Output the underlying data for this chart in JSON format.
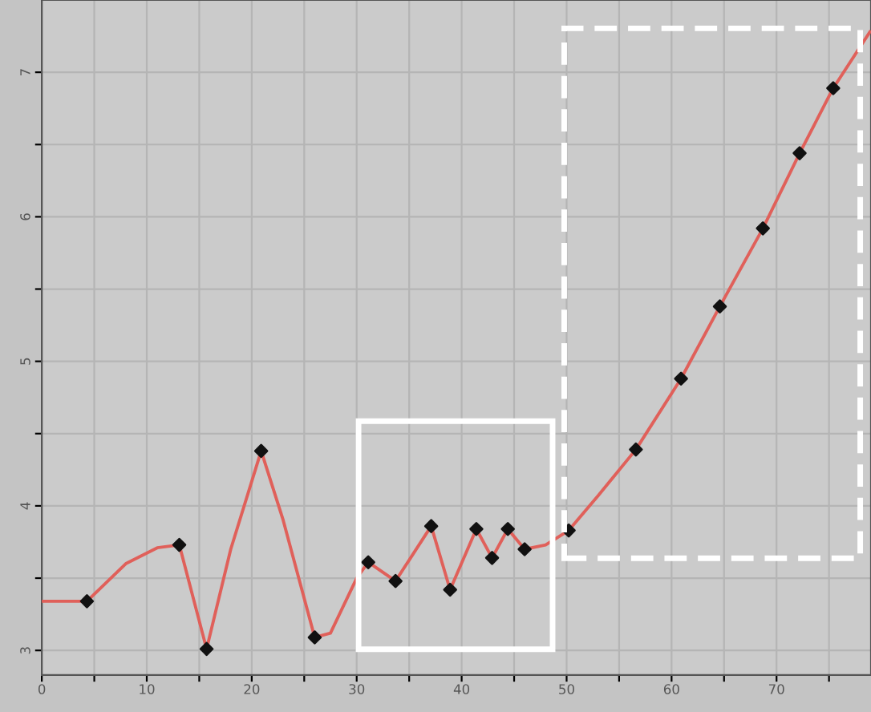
{
  "chart_data": {
    "type": "line",
    "series": [
      {
        "color": "#e0605a",
        "marker": "none",
        "x": [
          0,
          4.3,
          8,
          11,
          13.1,
          15.7,
          18,
          20.9,
          23,
          26,
          27.5,
          30,
          31.1,
          33.7,
          37.1,
          38.9,
          41.4,
          42.9,
          44.4,
          46,
          48,
          50.2,
          53,
          56.6,
          60.9,
          64.6,
          68.7,
          72.2,
          75.4,
          78.9
        ],
        "values": [
          3.34,
          3.34,
          3.6,
          3.71,
          3.73,
          3.01,
          3.7,
          4.38,
          3.9,
          3.09,
          3.12,
          3.5,
          3.61,
          3.48,
          3.86,
          3.42,
          3.84,
          3.64,
          3.84,
          3.7,
          3.73,
          3.83,
          4.07,
          4.39,
          4.88,
          5.38,
          5.92,
          6.44,
          6.89,
          7.28
        ]
      },
      {
        "type": "scatter",
        "color": "#111111",
        "marker": "diamond",
        "x": [
          4.3,
          13.1,
          15.7,
          20.9,
          26,
          31.1,
          33.7,
          37.1,
          38.9,
          41.4,
          42.9,
          44.4,
          46,
          50.2,
          56.6,
          60.9,
          64.6,
          68.7,
          72.2,
          75.4
        ],
        "values": [
          3.34,
          3.73,
          3.01,
          4.38,
          3.09,
          3.61,
          3.48,
          3.86,
          3.42,
          3.84,
          3.64,
          3.84,
          3.7,
          3.83,
          4.39,
          4.88,
          5.38,
          5.92,
          6.44,
          6.89
        ]
      }
    ],
    "xlim": [
      0,
      79
    ],
    "ylim": [
      2.83,
      7.5
    ],
    "xticks": [
      0,
      {
        "value": 5,
        "label": null
      },
      10,
      {
        "value": 15,
        "label": null
      },
      20,
      {
        "value": 25,
        "label": null
      },
      30,
      {
        "value": 35,
        "label": null
      },
      40,
      {
        "value": 45,
        "label": null
      },
      50,
      {
        "value": 55,
        "label": null
      },
      60,
      {
        "value": 65,
        "label": null
      },
      70,
      {
        "value": 75,
        "label": null
      }
    ],
    "yticks": [
      3,
      {
        "value": 3.5,
        "label": null
      },
      4,
      {
        "value": 4.5,
        "label": null
      },
      5,
      {
        "value": 5.5,
        "label": null
      },
      6,
      {
        "value": 6.5,
        "label": null
      },
      7
    ],
    "grid": true,
    "line_style": "solid"
  }
}
